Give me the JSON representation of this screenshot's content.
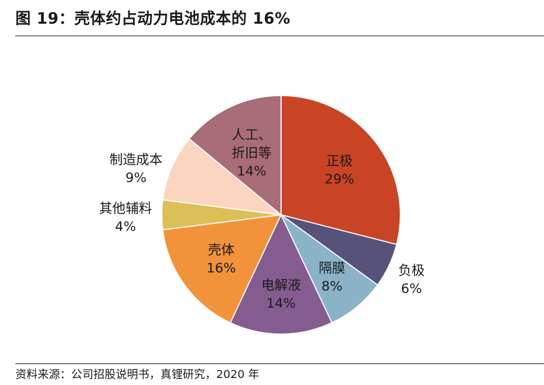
{
  "figure": {
    "title": "图 19：壳体约占动力电池成本的 16%",
    "source": "资料来源：公司招股说明书，真锂研究，2020 年"
  },
  "chart_data": {
    "type": "pie",
    "title": "壳体约占动力电池成本的 16%",
    "start": "12 o'clock",
    "direction": "clockwise",
    "slices": [
      {
        "label": "正极",
        "lines": [
          "正极"
        ],
        "value": 29,
        "pct": "29%",
        "color": "#c94424",
        "label_position": "inside"
      },
      {
        "label": "负极",
        "lines": [
          "负极"
        ],
        "value": 6,
        "pct": "6%",
        "color": "#56527a",
        "label_position": "outside"
      },
      {
        "label": "隔膜",
        "lines": [
          "隔膜"
        ],
        "value": 8,
        "pct": "8%",
        "color": "#8ab3c8",
        "label_position": "inside"
      },
      {
        "label": "电解液",
        "lines": [
          "电解液"
        ],
        "value": 14,
        "pct": "14%",
        "color": "#845c8f",
        "label_position": "inside"
      },
      {
        "label": "壳体",
        "lines": [
          "壳体"
        ],
        "value": 16,
        "pct": "16%",
        "color": "#f2923b",
        "label_position": "inside"
      },
      {
        "label": "其他辅料",
        "lines": [
          "其他辅料"
        ],
        "value": 4,
        "pct": "4%",
        "color": "#dcbf56",
        "label_position": "outside"
      },
      {
        "label": "制造成本",
        "lines": [
          "制造成本"
        ],
        "value": 9,
        "pct": "9%",
        "color": "#fbd5c0",
        "label_position": "outside"
      },
      {
        "label": "人工、折旧等",
        "lines": [
          "人工、",
          "折旧等"
        ],
        "value": 14,
        "pct": "14%",
        "color": "#a96c79",
        "label_position": "inside"
      }
    ]
  }
}
